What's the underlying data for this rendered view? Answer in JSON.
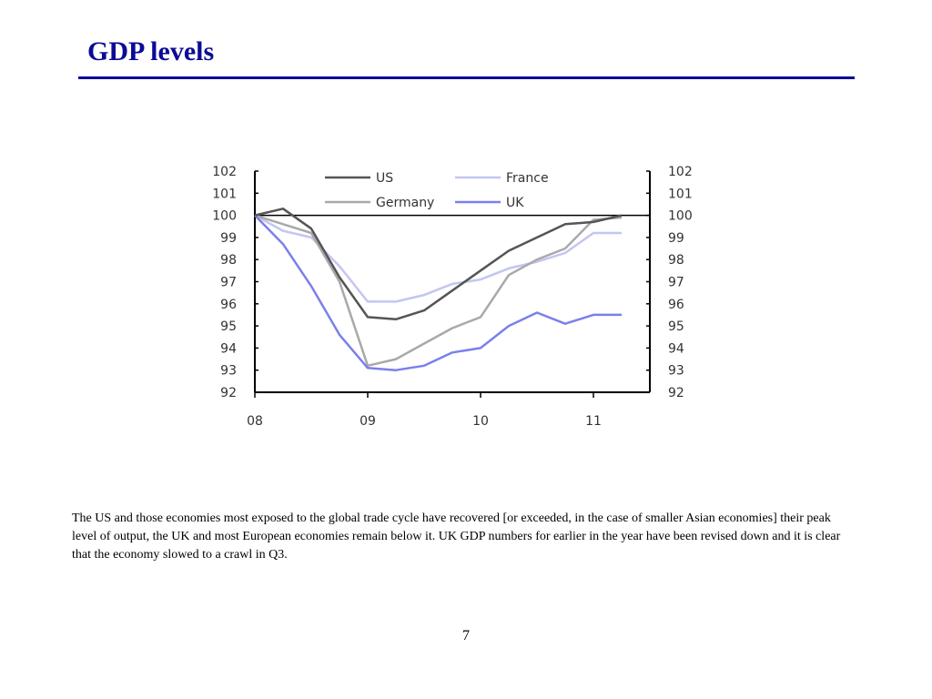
{
  "slide": {
    "title": "GDP levels",
    "caption": "The US and those economies most exposed to the global trade cycle have recovered [or exceeded, in the case of smaller Asian economies] their peak level of output, the UK and most European economies remain below it. UK GDP numbers for earlier in the year have been  revised down and it is clear that the economy slowed to a crawl in Q3.",
    "page_number": "7"
  },
  "colors": {
    "title": "#0b0b96",
    "rule": "#0b0b96"
  },
  "chart_data": {
    "type": "line",
    "title": "",
    "xlabel": "",
    "ylabel": "",
    "x_tick_labels": [
      "08",
      "09",
      "10",
      "11"
    ],
    "x": [
      2008.0,
      2008.25,
      2008.5,
      2008.75,
      2009.0,
      2009.25,
      2009.5,
      2009.75,
      2010.0,
      2010.25,
      2010.5,
      2010.75,
      2011.0,
      2011.25
    ],
    "xlim": [
      2008.0,
      2011.5
    ],
    "ylim": [
      92,
      102
    ],
    "y_ticks": [
      102,
      101,
      100,
      99,
      98,
      97,
      96,
      95,
      94,
      93,
      92
    ],
    "dual_y_axis": true,
    "reference_line": 100,
    "grid": false,
    "legend": "top, inside plot",
    "series": [
      {
        "name": "US",
        "color": "#555555",
        "values": [
          100.0,
          100.3,
          99.4,
          97.2,
          95.4,
          95.3,
          95.7,
          96.6,
          97.5,
          98.4,
          99.0,
          99.6,
          99.7,
          100.0
        ]
      },
      {
        "name": "France",
        "color": "#c3c6f2",
        "values": [
          100.0,
          99.3,
          99.0,
          97.7,
          96.1,
          96.1,
          96.4,
          96.9,
          97.1,
          97.6,
          97.9,
          98.3,
          99.2,
          99.2
        ]
      },
      {
        "name": "Germany",
        "color": "#a9a9a9",
        "values": [
          100.0,
          99.6,
          99.2,
          97.0,
          93.2,
          93.5,
          94.2,
          94.9,
          95.4,
          97.3,
          98.0,
          98.5,
          99.8,
          99.9
        ]
      },
      {
        "name": "UK",
        "color": "#7b80ea",
        "values": [
          100.0,
          98.7,
          96.8,
          94.6,
          93.1,
          93.0,
          93.2,
          93.8,
          94.0,
          95.0,
          95.6,
          95.1,
          95.5,
          95.5
        ]
      }
    ],
    "legend_order": [
      "US",
      "France",
      "Germany",
      "UK"
    ]
  }
}
